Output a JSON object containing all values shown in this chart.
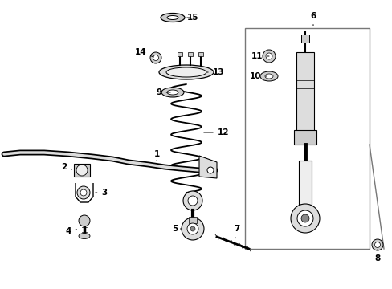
{
  "background_color": "#ffffff",
  "line_color": "#000000",
  "figsize": [
    4.89,
    3.6
  ],
  "dpi": 100,
  "xlim": [
    0,
    489
  ],
  "ylim": [
    0,
    360
  ]
}
